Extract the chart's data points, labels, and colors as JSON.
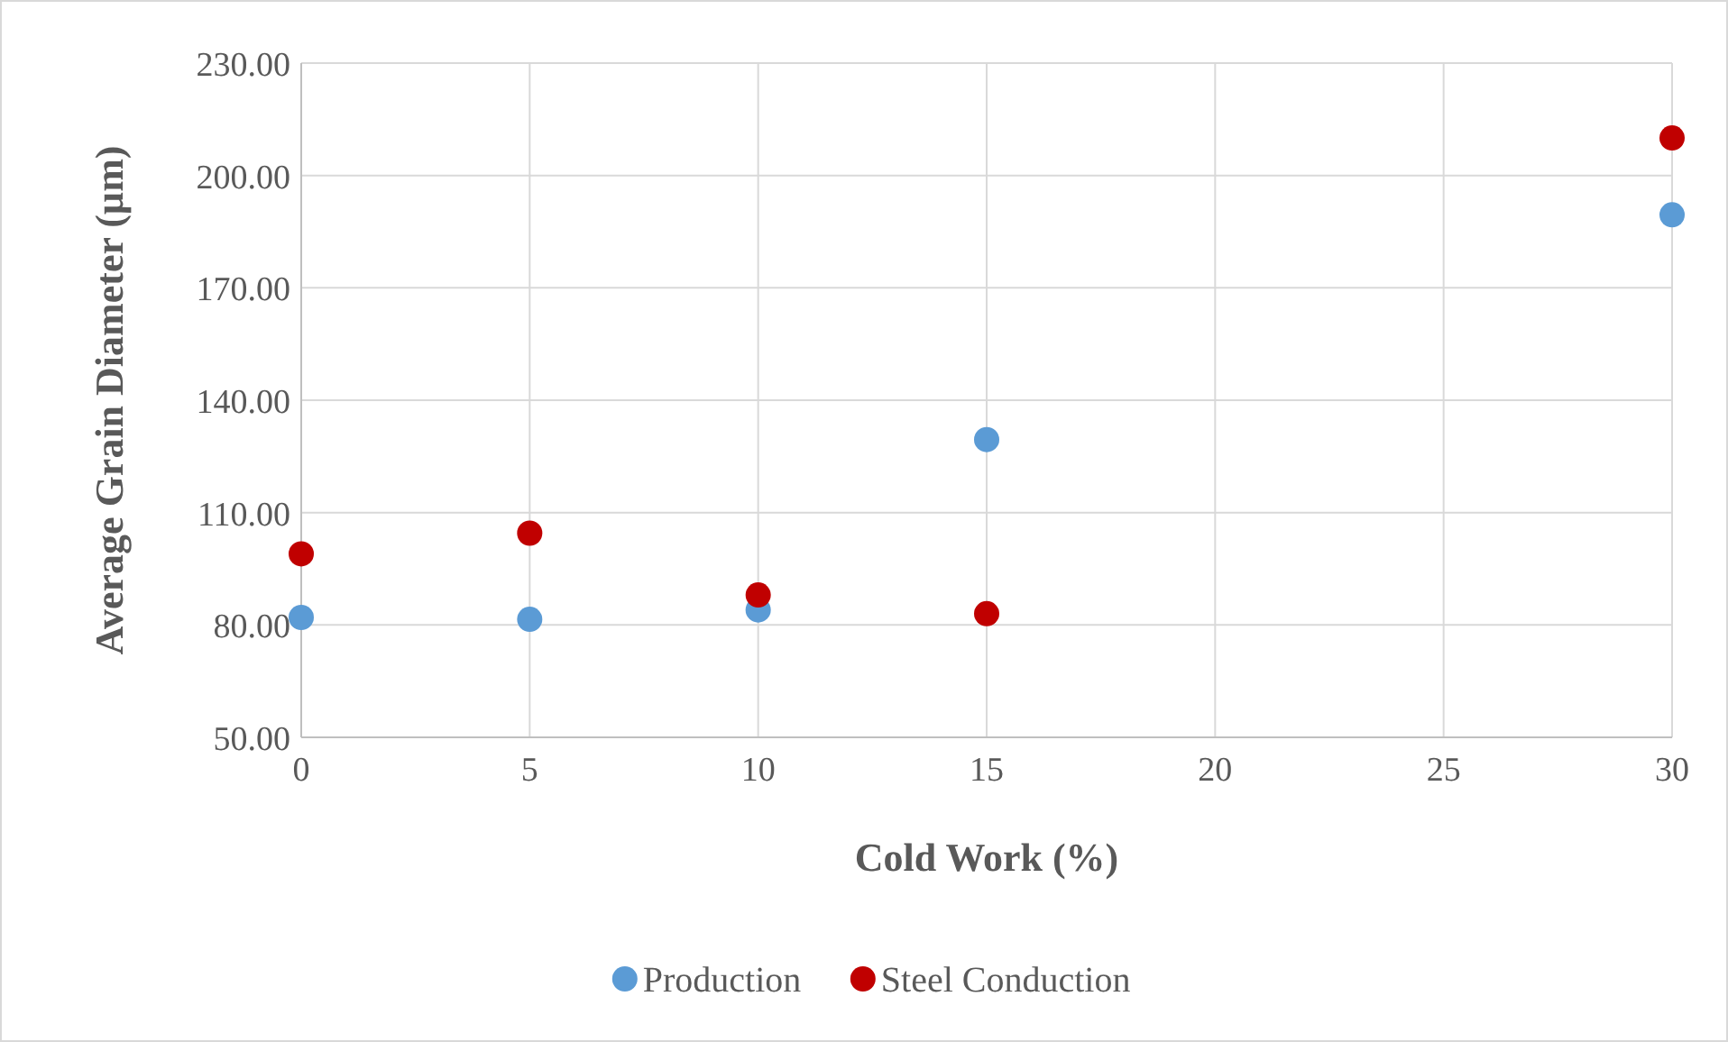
{
  "chart_data": {
    "type": "scatter",
    "xlabel": "Cold Work (%)",
    "ylabel": "Average Grain Diameter (µm)",
    "xlim": [
      0,
      30
    ],
    "xticks": [
      0,
      5,
      10,
      15,
      20,
      25,
      30
    ],
    "ylim": [
      50,
      230
    ],
    "yticks": [
      {
        "value": 50,
        "label": "50.00"
      },
      {
        "value": 80,
        "label": "80.00"
      },
      {
        "value": 110,
        "label": "110.00"
      },
      {
        "value": 140,
        "label": "140.00"
      },
      {
        "value": 170,
        "label": "170.00"
      },
      {
        "value": 200,
        "label": "200.00"
      },
      {
        "value": 230,
        "label": "230.00"
      }
    ],
    "grid": true,
    "legend": "bottom",
    "marker": "circle",
    "series": [
      {
        "name": "Production",
        "color": "#5b9bd5",
        "x": [
          0,
          5,
          10,
          15,
          30
        ],
        "values": [
          82,
          81.5,
          84,
          129.5,
          189.5
        ]
      },
      {
        "name": "Steel Conduction",
        "color": "#c00000",
        "x": [
          0,
          5,
          10,
          15,
          30
        ],
        "values": [
          99,
          104.5,
          88,
          83,
          210
        ]
      }
    ]
  }
}
